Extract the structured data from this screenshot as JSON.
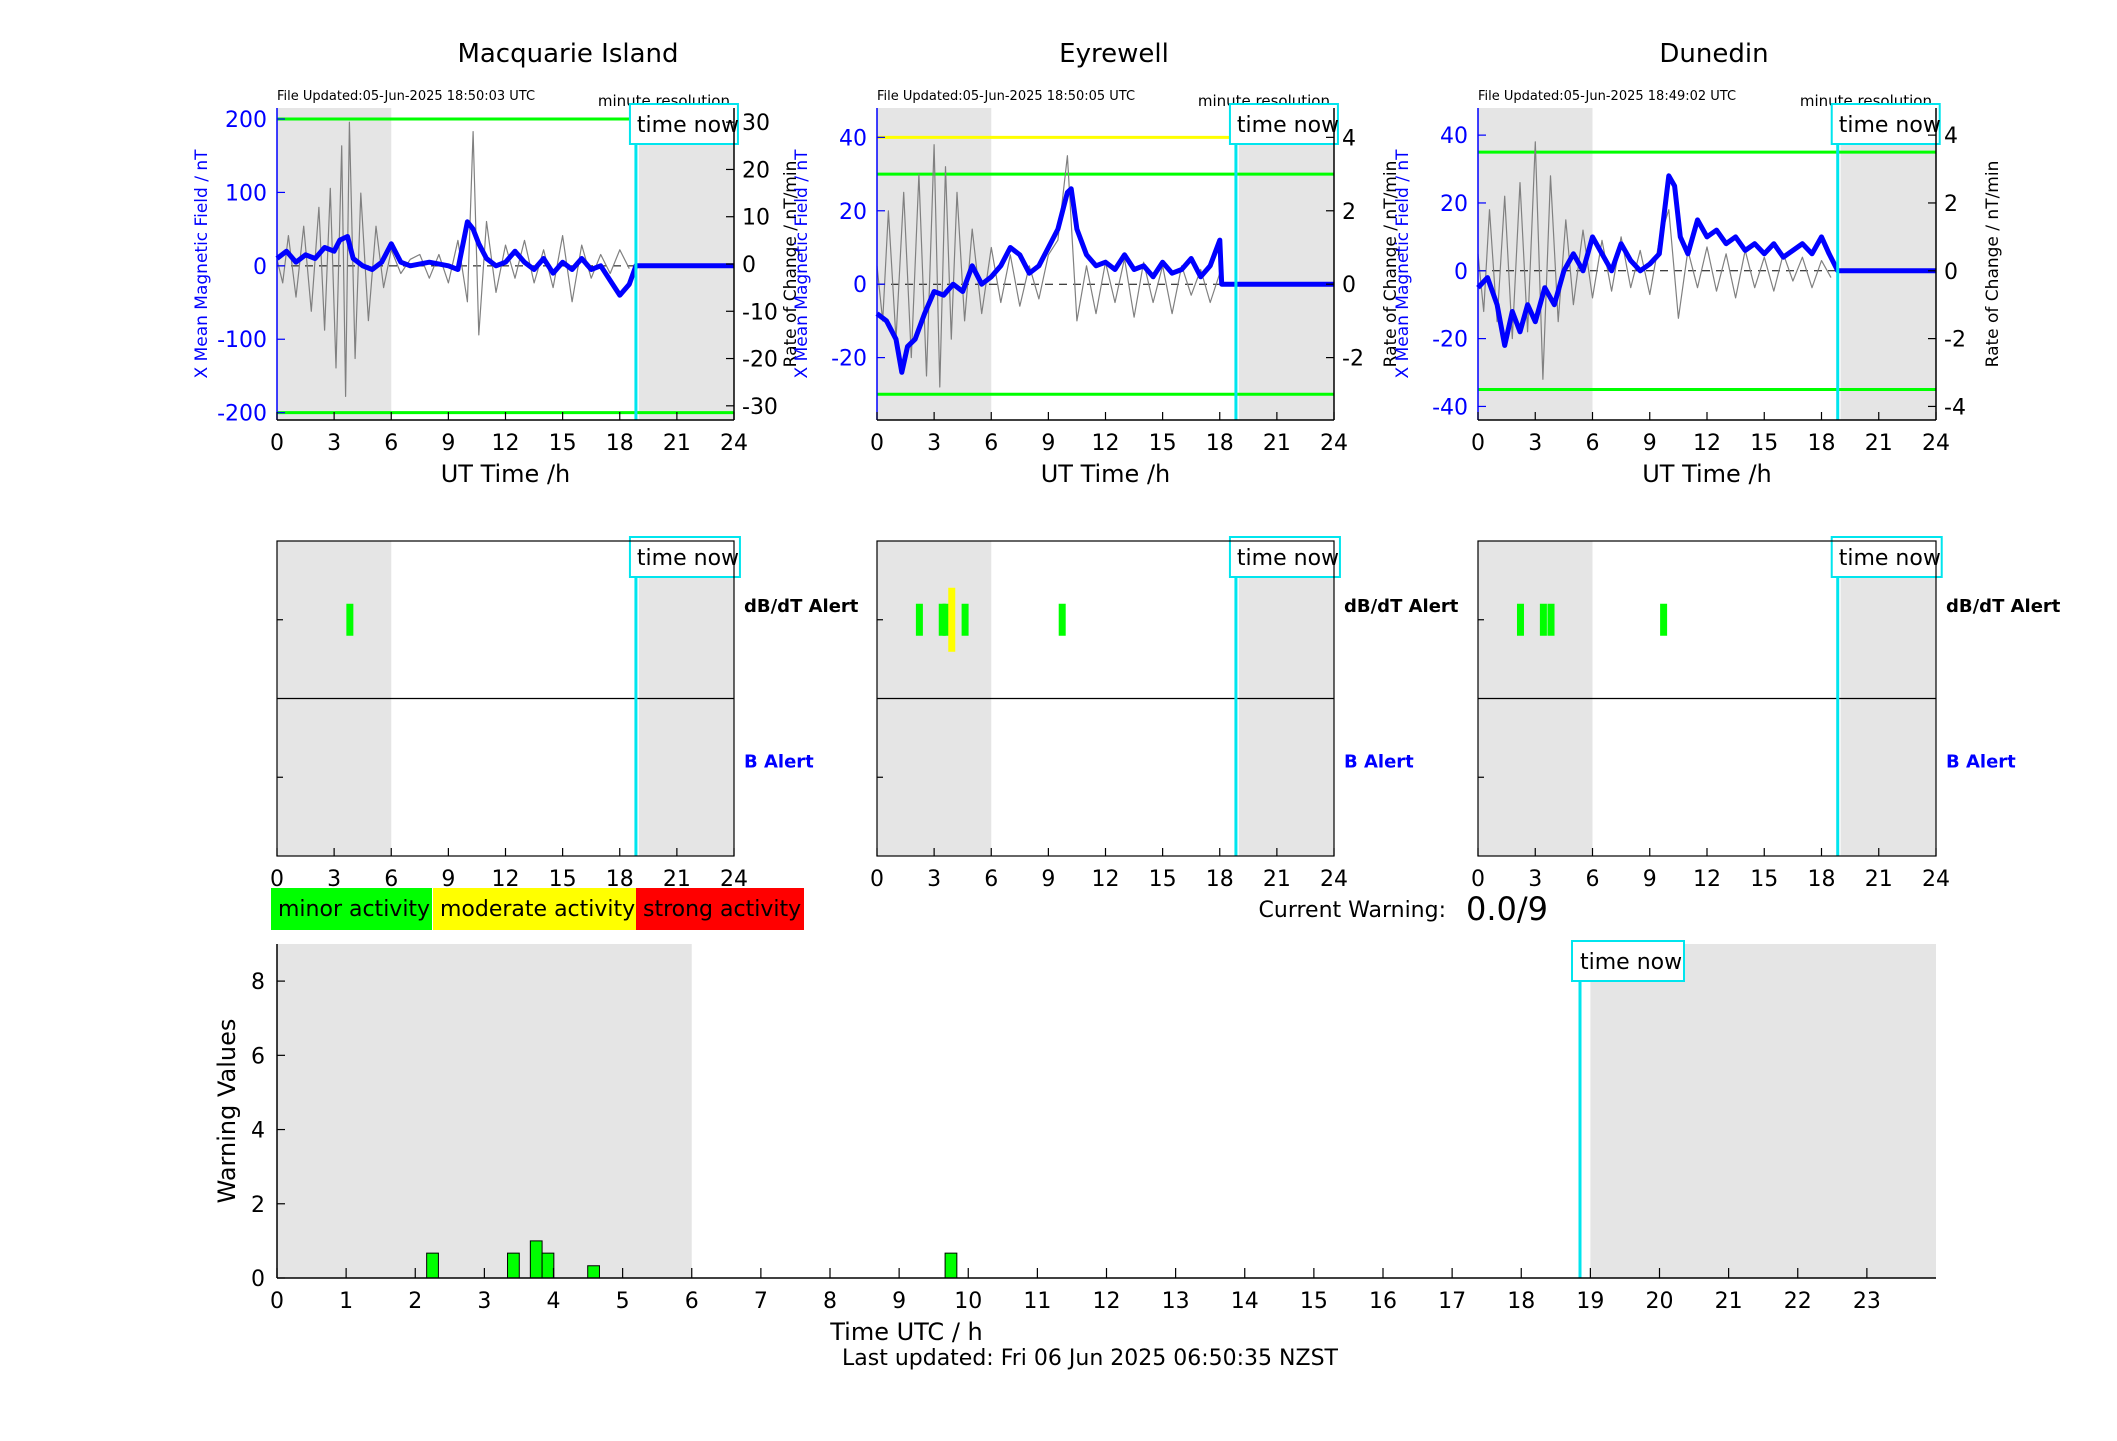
{
  "footer": {
    "last_updated": "Last updated: Fri 06 Jun 2025 06:50:35 NZST"
  },
  "legend": [
    {
      "label": "minor activity",
      "color": "#00ff00"
    },
    {
      "label": "moderate activity",
      "color": "#ffff00"
    },
    {
      "label": "strong activity",
      "color": "#ff0000"
    }
  ],
  "current_warning": {
    "label": "Current Warning:",
    "value": "0.0/9"
  },
  "common": {
    "time_now_label": "time now",
    "time_now_hour": 18.85,
    "x_label": "UT Time /h",
    "left_ylabel": "X Mean Magnetic Field / nT",
    "right_ylabel": "Rate of Change / nT/min",
    "resolution_label": "minute resolution",
    "dbdt_alert_label": "dB/dT Alert",
    "b_alert_label": "B Alert",
    "x_ticks": [
      0,
      3,
      6,
      9,
      12,
      15,
      18,
      21,
      24
    ],
    "night_shading_hours": [
      [
        0,
        6
      ],
      [
        19,
        24
      ]
    ],
    "colors": {
      "field": "#0000ff",
      "rate": "#808080",
      "time_now": "#00e5ee",
      "shade": "#e5e5e5",
      "threshold_minor": "#00ff00",
      "threshold_moderate": "#ffff00"
    }
  },
  "chart_data": [
    {
      "type": "line",
      "title": "Macquarie Island",
      "file_updated": "File Updated:05-Jun-2025 18:50:03 UTC",
      "xlim": [
        0,
        24
      ],
      "ylim_left": [
        -210,
        215
      ],
      "yticks_left": [
        -200,
        -100,
        0,
        100,
        200
      ],
      "ylim_right": [
        -33,
        33
      ],
      "yticks_right": [
        -30,
        -20,
        -10,
        0,
        10,
        20,
        30
      ],
      "thresholds": [
        {
          "axis": "left",
          "value": 200,
          "color": "#00ff00"
        },
        {
          "axis": "left",
          "value": -200,
          "color": "#00ff00"
        }
      ],
      "series": [
        {
          "axis": "left",
          "x": [
            0,
            0.5,
            1,
            1.5,
            2,
            2.5,
            3,
            3.3,
            3.7,
            4,
            4.5,
            5,
            5.5,
            6,
            6.5,
            7,
            8,
            9,
            9.5,
            10,
            10.3,
            10.6,
            11,
            11.5,
            12,
            12.5,
            13,
            13.5,
            14,
            14.5,
            15,
            15.5,
            16,
            16.5,
            17,
            17.5,
            18,
            18.5,
            18.85,
            24
          ],
          "y": [
            10,
            20,
            5,
            15,
            10,
            25,
            20,
            35,
            40,
            10,
            0,
            -5,
            5,
            30,
            5,
            0,
            5,
            0,
            -5,
            60,
            50,
            30,
            10,
            0,
            5,
            20,
            5,
            -5,
            10,
            -10,
            5,
            -5,
            10,
            -5,
            0,
            -20,
            -40,
            -25,
            0,
            0
          ]
        },
        {
          "axis": "right",
          "x": [
            0,
            0.3,
            0.6,
            1,
            1.4,
            1.8,
            2.2,
            2.5,
            2.8,
            3.1,
            3.4,
            3.6,
            3.8,
            4.1,
            4.4,
            4.8,
            5.2,
            5.6,
            6,
            6.5,
            7,
            7.5,
            8,
            8.5,
            9,
            9.5,
            10,
            10.3,
            10.6,
            11,
            11.5,
            12,
            12.5,
            13,
            13.5,
            14,
            14.5,
            15,
            15.5,
            16,
            16.5,
            17,
            17.5,
            18,
            18.5
          ],
          "y": [
            1,
            -4,
            6,
            -7,
            8,
            -10,
            12,
            -14,
            16,
            -22,
            25,
            -28,
            30,
            -20,
            15,
            -12,
            8,
            -5,
            3,
            -2,
            1,
            2,
            -3,
            2,
            -4,
            5,
            -8,
            28,
            -15,
            9,
            -6,
            4,
            -3,
            5,
            -4,
            3,
            -5,
            6,
            -8,
            4,
            -3,
            2,
            -2,
            3,
            -1
          ]
        }
      ]
    },
    {
      "type": "line",
      "title": "Eyrewell",
      "file_updated": "File Updated:05-Jun-2025 18:50:05 UTC",
      "xlim": [
        0,
        24
      ],
      "ylim_left": [
        -37,
        48
      ],
      "yticks_left": [
        -20,
        0,
        20,
        40
      ],
      "ylim_right": [
        -3.7,
        4.8
      ],
      "yticks_right": [
        -2,
        0,
        2,
        4
      ],
      "thresholds": [
        {
          "axis": "right",
          "value": 4,
          "color": "#ffff00"
        },
        {
          "axis": "right",
          "value": 3,
          "color": "#00ff00"
        },
        {
          "axis": "right",
          "value": -3,
          "color": "#00ff00"
        }
      ],
      "series": [
        {
          "axis": "left",
          "x": [
            0,
            0.5,
            1,
            1.3,
            1.6,
            2,
            2.5,
            3,
            3.5,
            4,
            4.5,
            5,
            5.5,
            6,
            6.5,
            7,
            7.5,
            8,
            8.5,
            9,
            9.5,
            10,
            10.2,
            10.5,
            11,
            11.5,
            12,
            12.5,
            13,
            13.5,
            14,
            14.5,
            15,
            15.5,
            16,
            16.5,
            17,
            17.5,
            18,
            18.1,
            24
          ],
          "y": [
            -8,
            -10,
            -15,
            -24,
            -17,
            -15,
            -8,
            -2,
            -3,
            0,
            -2,
            5,
            0,
            2,
            5,
            10,
            8,
            3,
            5,
            10,
            15,
            25,
            26,
            15,
            8,
            5,
            6,
            4,
            8,
            4,
            5,
            2,
            6,
            3,
            4,
            7,
            2,
            5,
            12,
            0,
            0
          ]
        },
        {
          "axis": "right",
          "x": [
            0,
            0.3,
            0.6,
            1,
            1.4,
            1.8,
            2.2,
            2.6,
            3,
            3.3,
            3.6,
            3.9,
            4.2,
            4.6,
            5,
            5.5,
            6,
            6.5,
            7,
            7.5,
            8,
            8.5,
            9,
            9.5,
            10,
            10.5,
            11,
            11.5,
            12,
            12.5,
            13,
            13.5,
            14,
            14.5,
            15,
            15.5,
            16,
            16.5,
            17,
            17.5,
            18
          ],
          "y": [
            0.5,
            -1,
            2,
            -1.5,
            2.5,
            -2,
            3,
            -2.5,
            3.8,
            -2.8,
            3.2,
            -1.5,
            2.5,
            -1,
            1.5,
            -0.8,
            1,
            -0.5,
            0.8,
            -0.6,
            0.5,
            -0.4,
            0.8,
            1.2,
            3.5,
            -1,
            0.5,
            -0.8,
            0.6,
            -0.5,
            0.7,
            -0.9,
            0.6,
            -0.5,
            0.5,
            -0.8,
            0.5,
            -0.3,
            0.4,
            -0.5,
            0.3
          ]
        }
      ]
    },
    {
      "type": "line",
      "title": "Dunedin",
      "file_updated": "File Updated:05-Jun-2025 18:49:02 UTC",
      "xlim": [
        0,
        24
      ],
      "ylim_left": [
        -44,
        48
      ],
      "yticks_left": [
        -40,
        -20,
        0,
        20,
        40
      ],
      "ylim_right": [
        -4.4,
        4.8
      ],
      "yticks_right": [
        -4,
        -2,
        0,
        2,
        4
      ],
      "thresholds": [
        {
          "axis": "right",
          "value": 3.5,
          "color": "#00ff00"
        },
        {
          "axis": "right",
          "value": -3.5,
          "color": "#00ff00"
        }
      ],
      "series": [
        {
          "axis": "left",
          "x": [
            0,
            0.5,
            1,
            1.4,
            1.8,
            2.2,
            2.6,
            3,
            3.5,
            4,
            4.5,
            5,
            5.5,
            6,
            6.5,
            7,
            7.5,
            8,
            8.5,
            9,
            9.5,
            10,
            10.3,
            10.6,
            11,
            11.5,
            12,
            12.5,
            13,
            13.5,
            14,
            14.5,
            15,
            15.5,
            16,
            16.5,
            17,
            17.5,
            18,
            18.4,
            18.85,
            24
          ],
          "y": [
            -5,
            -2,
            -10,
            -22,
            -12,
            -18,
            -10,
            -15,
            -5,
            -10,
            0,
            5,
            0,
            10,
            5,
            0,
            8,
            3,
            0,
            2,
            5,
            28,
            25,
            10,
            5,
            15,
            10,
            12,
            8,
            10,
            6,
            8,
            5,
            8,
            4,
            6,
            8,
            5,
            10,
            5,
            0,
            0
          ]
        },
        {
          "axis": "right",
          "x": [
            0,
            0.3,
            0.6,
            1,
            1.4,
            1.8,
            2.2,
            2.6,
            3,
            3.4,
            3.8,
            4.2,
            4.6,
            5,
            5.5,
            6,
            6.5,
            7,
            7.5,
            8,
            8.5,
            9,
            9.5,
            10,
            10.5,
            11,
            11.5,
            12,
            12.5,
            13,
            13.5,
            14,
            14.5,
            15,
            15.5,
            16,
            16.5,
            17,
            17.5,
            18,
            18.5
          ],
          "y": [
            0.5,
            -1.2,
            1.8,
            -1.5,
            2.2,
            -2,
            2.6,
            -1.8,
            3.8,
            -3.2,
            2.8,
            -1.5,
            1.5,
            -1,
            1.2,
            -0.8,
            0.9,
            -0.6,
            1,
            -0.5,
            0.6,
            -0.7,
            0.9,
            1.8,
            -1.4,
            0.6,
            -0.5,
            0.7,
            -0.6,
            0.5,
            -0.8,
            0.6,
            -0.5,
            0.4,
            -0.6,
            0.5,
            -0.3,
            0.4,
            -0.5,
            0.3,
            -0.2
          ]
        }
      ]
    },
    {
      "type": "alert_strip",
      "station": "Macquarie Island",
      "xlim": [
        0,
        24
      ],
      "dbdt_alerts": [
        {
          "hour": 3.8,
          "level": "minor"
        }
      ],
      "b_alerts": []
    },
    {
      "type": "alert_strip",
      "station": "Eyrewell",
      "xlim": [
        0,
        24
      ],
      "dbdt_alerts": [
        {
          "hour": 2.2,
          "level": "minor"
        },
        {
          "hour": 3.4,
          "level": "minor"
        },
        {
          "hour": 3.6,
          "level": "minor"
        },
        {
          "hour": 3.9,
          "level": "moderate"
        },
        {
          "hour": 4.6,
          "level": "minor"
        },
        {
          "hour": 9.7,
          "level": "minor"
        }
      ],
      "b_alerts": []
    },
    {
      "type": "alert_strip",
      "station": "Dunedin",
      "xlim": [
        0,
        24
      ],
      "dbdt_alerts": [
        {
          "hour": 2.2,
          "level": "minor"
        },
        {
          "hour": 3.4,
          "level": "minor"
        },
        {
          "hour": 3.8,
          "level": "minor"
        },
        {
          "hour": 9.7,
          "level": "minor"
        }
      ],
      "b_alerts": []
    },
    {
      "type": "bar",
      "xlabel": "Time UTC / h",
      "ylabel": "Warning Values",
      "xlim": [
        0,
        24
      ],
      "ylim": [
        0,
        9
      ],
      "x_ticks": [
        0,
        1,
        2,
        3,
        4,
        5,
        6,
        7,
        8,
        9,
        10,
        11,
        12,
        13,
        14,
        15,
        16,
        17,
        18,
        19,
        20,
        21,
        22,
        23
      ],
      "y_ticks": [
        0,
        2,
        4,
        6,
        8
      ],
      "night_shading_hours": [
        [
          0,
          6
        ],
        [
          19,
          24
        ]
      ],
      "bars": [
        {
          "hour": 2.25,
          "value": 0.67
        },
        {
          "hour": 3.42,
          "value": 0.67
        },
        {
          "hour": 3.75,
          "value": 1.0
        },
        {
          "hour": 3.92,
          "value": 0.67
        },
        {
          "hour": 4.58,
          "value": 0.33
        },
        {
          "hour": 9.75,
          "value": 0.67
        }
      ],
      "bar_width_hours": 0.17,
      "bar_color": "#00ff00"
    }
  ]
}
